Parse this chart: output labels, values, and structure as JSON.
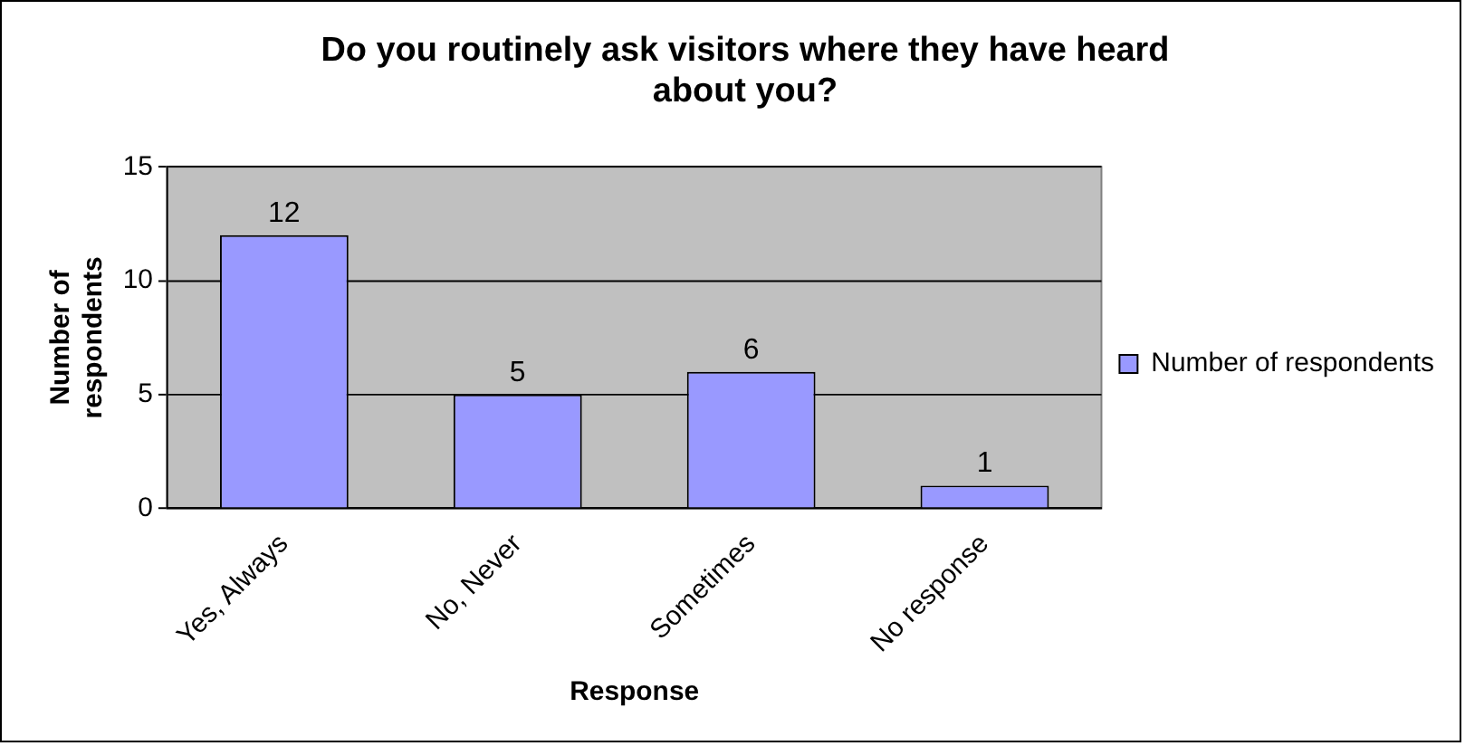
{
  "chart_data": {
    "type": "bar",
    "title": "Do you routinely ask visitors where they have heard about you?",
    "xlabel": "Response",
    "ylabel": "Number of respondents",
    "categories": [
      "Yes, Always",
      "No, Never",
      "Sometimes",
      "No response"
    ],
    "series": [
      {
        "name": "Number of respondents",
        "color": "#9999ff",
        "values": [
          12,
          5,
          6,
          1
        ]
      }
    ],
    "ylim": [
      0,
      15
    ],
    "yticks": [
      0,
      5,
      10,
      15
    ],
    "grid": "y",
    "legend": "right",
    "data_labels": true
  }
}
